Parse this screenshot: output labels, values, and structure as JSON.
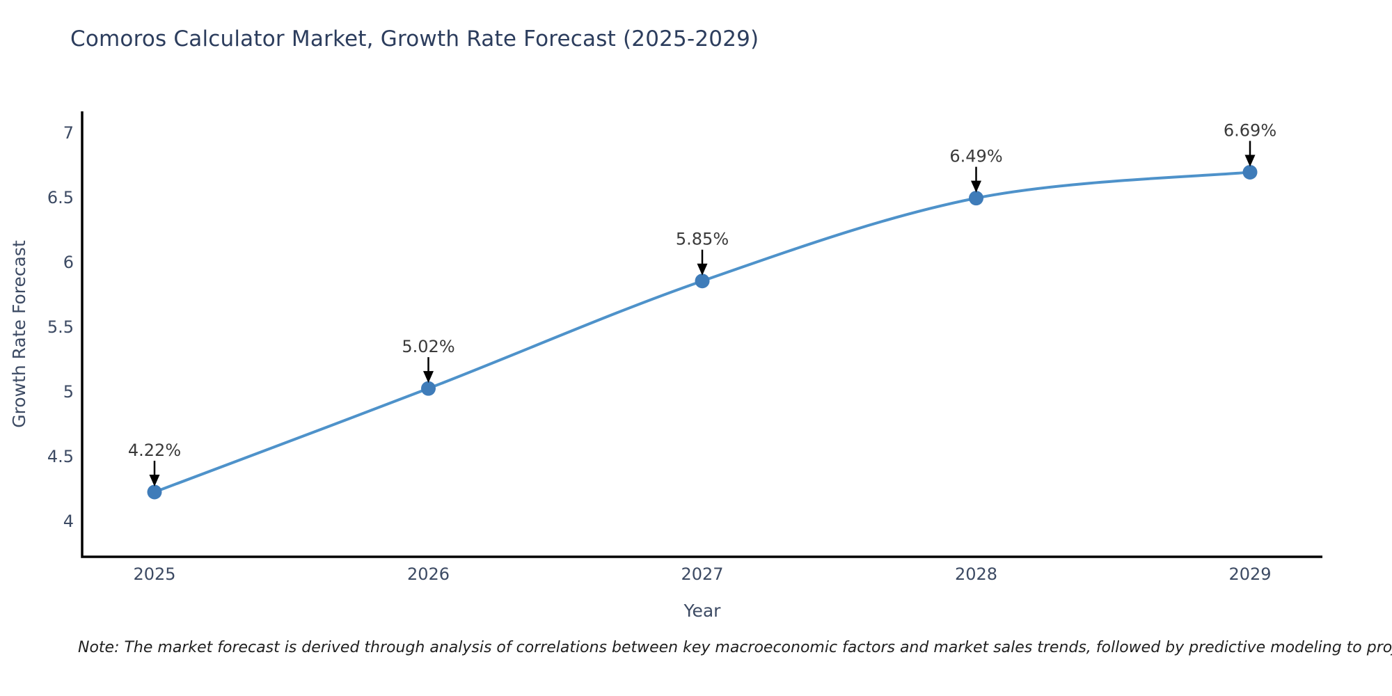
{
  "title": "Comoros Calculator Market, Growth Rate Forecast (2025-2029)",
  "note": "Note: The market forecast is derived through analysis of correlations between key macroeconomic factors and market sales trends, followed by predictive modeling to project future sales",
  "chart_data": {
    "type": "line",
    "title": "Comoros Calculator Market, Growth Rate Forecast (2025-2029)",
    "categories": [
      "2025",
      "2026",
      "2027",
      "2028",
      "2029"
    ],
    "values": [
      4.22,
      5.02,
      5.85,
      6.49,
      6.69
    ],
    "point_labels": [
      "4.22%",
      "5.02%",
      "5.85%",
      "6.49%",
      "6.69%"
    ],
    "xlabel": "Year",
    "ylabel": "Growth Rate Forecast",
    "yticks": [
      4,
      4.5,
      5,
      5.5,
      6,
      6.5,
      7
    ],
    "ylim": [
      3.72,
      7.16
    ],
    "line_shape": "spline",
    "grid": false,
    "legend_position": "none",
    "line_color": "#4e92ca",
    "marker_color": "#3f7cb9",
    "axis_color": "#000000",
    "annotation_arrow_color": "#000000"
  }
}
